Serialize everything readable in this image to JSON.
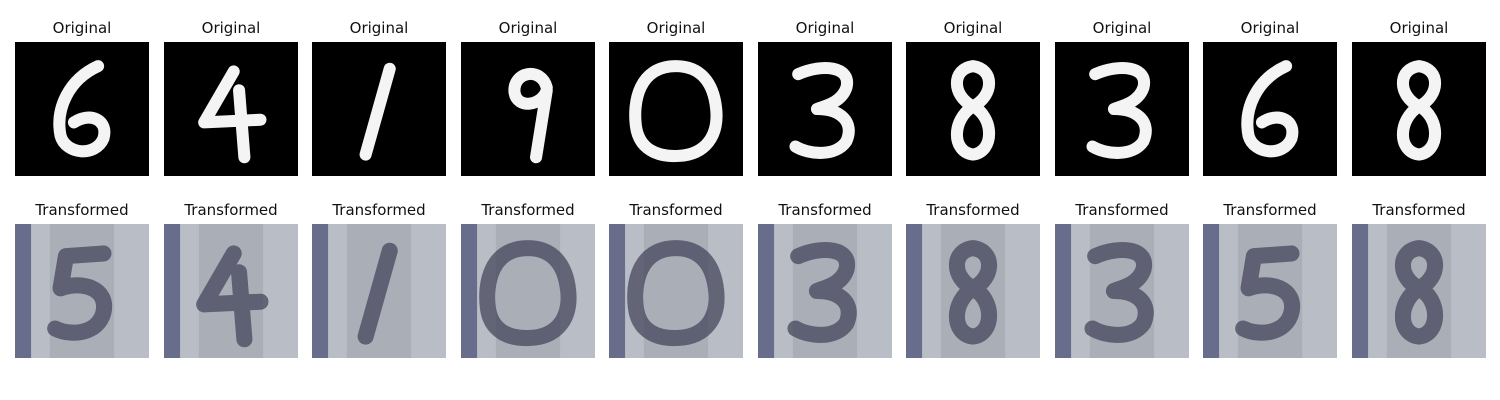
{
  "rows": [
    {
      "kind": "original",
      "panels": [
        {
          "title": "Original",
          "digit": "6"
        },
        {
          "title": "Original",
          "digit": "4"
        },
        {
          "title": "Original",
          "digit": "1"
        },
        {
          "title": "Original",
          "digit": "9"
        },
        {
          "title": "Original",
          "digit": "0"
        },
        {
          "title": "Original",
          "digit": "3"
        },
        {
          "title": "Original",
          "digit": "8"
        },
        {
          "title": "Original",
          "digit": "3"
        },
        {
          "title": "Original",
          "digit": "6"
        },
        {
          "title": "Original",
          "digit": "8"
        }
      ]
    },
    {
      "kind": "transformed",
      "panels": [
        {
          "title": "Transformed",
          "digit": "5"
        },
        {
          "title": "Transformed",
          "digit": "4"
        },
        {
          "title": "Transformed",
          "digit": "1"
        },
        {
          "title": "Transformed",
          "digit": "0"
        },
        {
          "title": "Transformed",
          "digit": "0"
        },
        {
          "title": "Transformed",
          "digit": "3"
        },
        {
          "title": "Transformed",
          "digit": "8"
        },
        {
          "title": "Transformed",
          "digit": "3"
        },
        {
          "title": "Transformed",
          "digit": "5"
        },
        {
          "title": "Transformed",
          "digit": "8"
        }
      ]
    }
  ],
  "colors": {
    "original_bg": "#000000",
    "original_ink": "#f4f4f4",
    "transformed_bg": "#b9bec6",
    "transformed_ink": "#3e3f55",
    "transformed_edge": "#4d5178"
  }
}
